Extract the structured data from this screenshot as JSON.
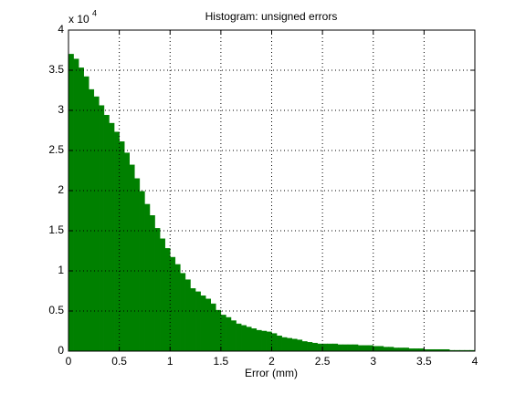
{
  "chart_data": {
    "type": "histogram",
    "title": "Histogram: unsigned errors",
    "xlabel": "Error (mm)",
    "y_multiplier": {
      "base": "x 10",
      "exponent": "4"
    },
    "color": "#008000",
    "grid": true,
    "bins": [
      0,
      0.05,
      0.1,
      0.15,
      0.2,
      0.25,
      0.3,
      0.35,
      0.4,
      0.45,
      0.5,
      0.55,
      0.6,
      0.65,
      0.7,
      0.75,
      0.8,
      0.85,
      0.9,
      0.95,
      1,
      1.05,
      1.1,
      1.15,
      1.2,
      1.25,
      1.3,
      1.35,
      1.4,
      1.45,
      1.5,
      1.55,
      1.6,
      1.65,
      1.7,
      1.75,
      1.8,
      1.85,
      1.9,
      1.95,
      2,
      2.05,
      2.1,
      2.15,
      2.2,
      2.25,
      2.3,
      2.35,
      2.4,
      2.45,
      2.5,
      2.55,
      2.6,
      2.65,
      2.7,
      2.75,
      2.8,
      2.85,
      2.9,
      2.95,
      3,
      3.05,
      3.1,
      3.15,
      3.2,
      3.25,
      3.3,
      3.35,
      3.4,
      3.45,
      3.5,
      3.55,
      3.6,
      3.65,
      3.7,
      3.75,
      3.8,
      3.85,
      3.9,
      3.95,
      4
    ],
    "counts": [
      3.7,
      3.64,
      3.53,
      3.42,
      3.26,
      3.17,
      3.06,
      2.94,
      2.84,
      2.73,
      2.61,
      2.47,
      2.32,
      2.15,
      1.99,
      1.83,
      1.69,
      1.53,
      1.4,
      1.28,
      1.17,
      1.08,
      0.97,
      0.89,
      0.78,
      0.74,
      0.69,
      0.65,
      0.59,
      0.51,
      0.45,
      0.42,
      0.38,
      0.34,
      0.32,
      0.3,
      0.28,
      0.26,
      0.25,
      0.24,
      0.22,
      0.19,
      0.17,
      0.16,
      0.15,
      0.14,
      0.12,
      0.11,
      0.1,
      0.09,
      0.09,
      0.09,
      0.09,
      0.08,
      0.08,
      0.08,
      0.08,
      0.07,
      0.07,
      0.07,
      0.06,
      0.06,
      0.05,
      0.05,
      0.04,
      0.04,
      0.04,
      0.03,
      0.03,
      0.03,
      0.02,
      0.02,
      0.02,
      0.02,
      0.02,
      0.01,
      0.01,
      0.01,
      0.01,
      0.01
    ],
    "xlim": [
      0,
      4
    ],
    "xticks": [
      0,
      0.5,
      1,
      1.5,
      2,
      2.5,
      3,
      3.5,
      4
    ],
    "ylim": [
      0,
      4
    ],
    "yticks": [
      0,
      0.5,
      1,
      1.5,
      2,
      2.5,
      3,
      3.5,
      4
    ]
  }
}
